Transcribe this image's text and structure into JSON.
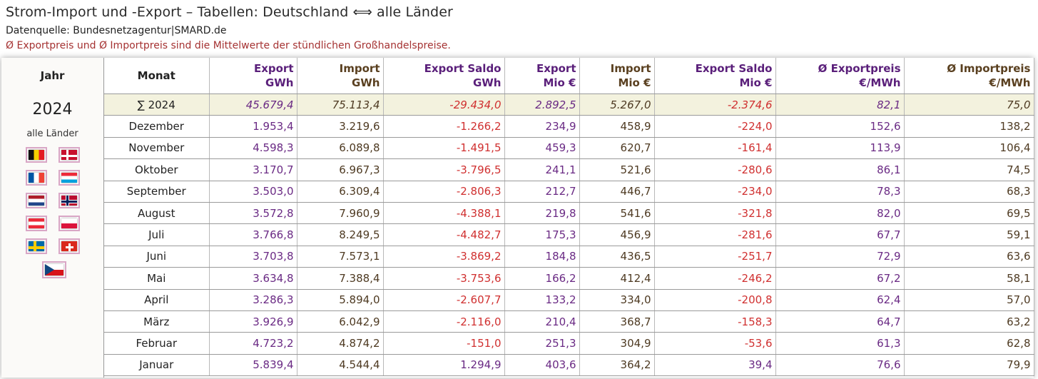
{
  "title": "Strom-Import und -Export – Tabellen: Deutschland ⟺ alle Länder",
  "source": "Datenquelle: Bundesnetzagentur|SMARD.de",
  "note": "Ø Exportpreis und Ø Importpreis sind die Mittelwerte der stündlichen Großhandelspreise.",
  "left": {
    "jahr_label": "Jahr",
    "year": "2024",
    "alle": "alle Länder"
  },
  "flags": [
    {
      "name": "belgium-flag-icon"
    },
    {
      "name": "denmark-flag-icon"
    },
    {
      "name": "france-flag-icon"
    },
    {
      "name": "luxembourg-flag-icon"
    },
    {
      "name": "netherlands-flag-icon"
    },
    {
      "name": "norway-flag-icon"
    },
    {
      "name": "austria-flag-icon"
    },
    {
      "name": "poland-flag-icon"
    },
    {
      "name": "sweden-flag-icon"
    },
    {
      "name": "switzerland-flag-icon"
    },
    {
      "name": "czechia-flag-icon"
    }
  ],
  "headers": {
    "monat": "Monat",
    "export_gwh": [
      "Export",
      "GWh"
    ],
    "import_gwh": [
      "Import",
      "GWh"
    ],
    "saldo_gwh": [
      "Export Saldo",
      "GWh"
    ],
    "export_eur": [
      "Export",
      "Mio €"
    ],
    "import_eur": [
      "Import",
      "Mio €"
    ],
    "saldo_eur": [
      "Export Saldo",
      "Mio €"
    ],
    "export_preis": [
      "Ø Exportpreis",
      "€/MWh"
    ],
    "import_preis": [
      "Ø Importpreis",
      "€/MWh"
    ]
  },
  "sum_row": [
    "∑ 2024",
    "45.679,4",
    "75.113,4",
    "-29.434,0",
    "2.892,5",
    "5.267,0",
    "-2.374,6",
    "82,1",
    "75,0"
  ],
  "rows": [
    [
      "Dezember",
      "1.953,4",
      "3.219,6",
      "-1.266,2",
      "234,9",
      "458,9",
      "-224,0",
      "152,6",
      "138,2"
    ],
    [
      "November",
      "4.598,3",
      "6.089,8",
      "-1.491,5",
      "459,3",
      "620,7",
      "-161,4",
      "113,9",
      "106,4"
    ],
    [
      "Oktober",
      "3.170,7",
      "6.967,3",
      "-3.796,5",
      "241,1",
      "521,6",
      "-280,6",
      "86,1",
      "74,5"
    ],
    [
      "September",
      "3.503,0",
      "6.309,4",
      "-2.806,3",
      "212,7",
      "446,7",
      "-234,0",
      "78,3",
      "68,3"
    ],
    [
      "August",
      "3.572,8",
      "7.960,9",
      "-4.388,1",
      "219,8",
      "541,6",
      "-321,8",
      "82,0",
      "69,5"
    ],
    [
      "Juli",
      "3.766,8",
      "8.249,5",
      "-4.482,7",
      "175,3",
      "456,9",
      "-281,6",
      "67,7",
      "59,1"
    ],
    [
      "Juni",
      "3.703,8",
      "7.573,1",
      "-3.869,2",
      "184,8",
      "436,5",
      "-251,7",
      "72,9",
      "63,6"
    ],
    [
      "Mai",
      "3.634,8",
      "7.388,4",
      "-3.753,6",
      "166,2",
      "412,4",
      "-246,2",
      "67,2",
      "58,1"
    ],
    [
      "April",
      "3.286,3",
      "5.894,0",
      "-2.607,7",
      "133,2",
      "334,0",
      "-200,8",
      "62,4",
      "57,0"
    ],
    [
      "März",
      "3.926,9",
      "6.042,9",
      "-2.116,0",
      "210,4",
      "368,7",
      "-158,3",
      "64,7",
      "63,2"
    ],
    [
      "Februar",
      "4.723,2",
      "4.874,2",
      "-151,0",
      "251,3",
      "304,9",
      "-53,6",
      "61,3",
      "62,8"
    ],
    [
      "Januar",
      "5.839,4",
      "4.544,4",
      "1.294,9",
      "403,6",
      "364,2",
      "39,4",
      "76,6",
      "79,9"
    ]
  ],
  "colors": {
    "purple": "#6a2a84",
    "brown": "#4e3a22",
    "red": "#d03030",
    "sum_bg": "#f3f2de",
    "flag_border": "#d9a7c6"
  }
}
